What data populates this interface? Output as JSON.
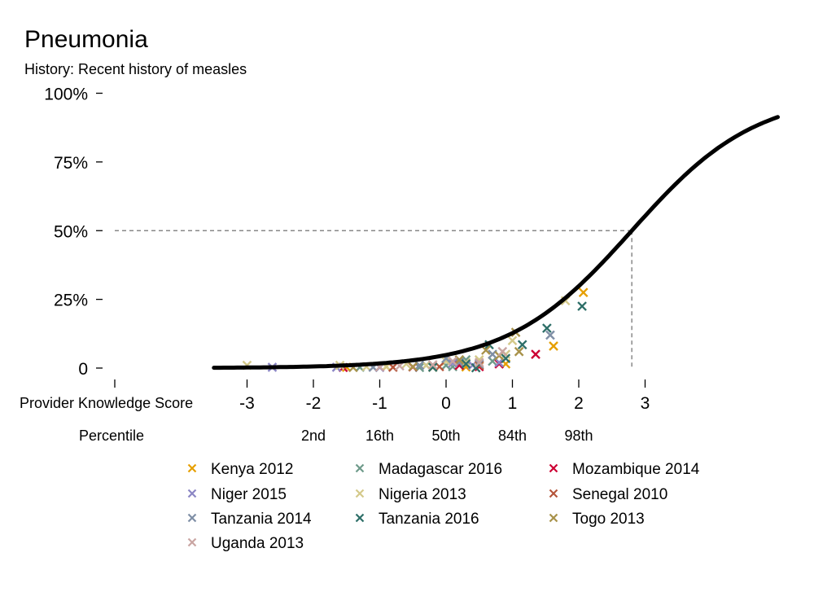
{
  "chart_data": {
    "type": "scatter",
    "title": "Pneumonia",
    "subtitle": "History: Recent history of measles",
    "xlabel": "Provider Knowledge Score",
    "x_ticks": [
      "-3",
      "-2",
      "-1",
      "0",
      "1",
      "2",
      "3"
    ],
    "xlim": [
      -3.5,
      5.0
    ],
    "ylim": [
      0,
      100
    ],
    "y_ticks": [
      "0",
      "25%",
      "50%",
      "75%",
      "100%"
    ],
    "percentile_label": "Percentile",
    "percentile_ticks": [
      {
        "x": -2,
        "label": "2nd"
      },
      {
        "x": -1,
        "label": "16th"
      },
      {
        "x": 0,
        "label": "50th"
      },
      {
        "x": 1,
        "label": "84th"
      },
      {
        "x": 2,
        "label": "98th"
      }
    ],
    "curve": {
      "type": "logistic",
      "x50": 2.8,
      "slope": 1.07,
      "color": "#000000"
    },
    "reference": {
      "x": 2.8,
      "y": 50
    },
    "grid": false,
    "legend_position": "bottom",
    "series": [
      {
        "name": "Kenya 2012",
        "color": "#E69F00",
        "points": [
          [
            2.07,
            27.5
          ],
          [
            1.62,
            8
          ],
          [
            0.9,
            1.5
          ],
          [
            0.5,
            1
          ],
          [
            -0.9,
            0.5
          ],
          [
            -0.2,
            0.3
          ],
          [
            0.3,
            0.4
          ],
          [
            -1.5,
            0.3
          ]
        ]
      },
      {
        "name": "Madagascar 2016",
        "color": "#6E9A8A",
        "points": [
          [
            0.3,
            3
          ],
          [
            0.0,
            1
          ],
          [
            -0.4,
            0.2
          ],
          [
            0.7,
            2.5
          ],
          [
            -1.3,
            0.3
          ],
          [
            0.1,
            0.5
          ]
        ]
      },
      {
        "name": "Mozambique 2014",
        "color": "#CC0033",
        "points": [
          [
            1.35,
            5
          ],
          [
            0.8,
            1.5
          ],
          [
            -1.55,
            0.2
          ],
          [
            -0.5,
            0.4
          ],
          [
            0.2,
            1
          ],
          [
            0.5,
            0.5
          ]
        ]
      },
      {
        "name": "Niger 2015",
        "color": "#8B86C4",
        "points": [
          [
            -2.62,
            0.3
          ],
          [
            -1.65,
            0.3
          ],
          [
            -1.0,
            0.2
          ],
          [
            -0.3,
            1
          ],
          [
            0.4,
            1
          ],
          [
            0.8,
            2
          ],
          [
            0.1,
            1.8
          ]
        ]
      },
      {
        "name": "Nigeria 2013",
        "color": "#D4C98A",
        "points": [
          [
            1.8,
            24.5
          ],
          [
            -3.0,
            1
          ],
          [
            -1.6,
            1
          ],
          [
            -0.6,
            1.5
          ],
          [
            0.0,
            2.5
          ],
          [
            0.5,
            3
          ],
          [
            1.0,
            10
          ],
          [
            -0.3,
            1
          ],
          [
            -0.9,
            0.6
          ],
          [
            0.3,
            2
          ],
          [
            0.9,
            5
          ],
          [
            -1.2,
            0.5
          ]
        ]
      },
      {
        "name": "Senegal 2010",
        "color": "#B5553A",
        "points": [
          [
            -0.1,
            0.5
          ],
          [
            0.5,
            1
          ],
          [
            -0.8,
            0.3
          ]
        ]
      },
      {
        "name": "Tanzania 2014",
        "color": "#7F8FA6",
        "points": [
          [
            1.57,
            12
          ],
          [
            0.7,
            5
          ],
          [
            0.2,
            2
          ],
          [
            -0.4,
            1
          ],
          [
            -1.1,
            0.3
          ],
          [
            0.0,
            3.5
          ],
          [
            0.5,
            1.5
          ]
        ]
      },
      {
        "name": "Tanzania 2016",
        "color": "#2E6F68",
        "points": [
          [
            2.05,
            22.5
          ],
          [
            1.52,
            14.5
          ],
          [
            1.15,
            8.5
          ],
          [
            0.65,
            8.5
          ],
          [
            0.9,
            3.5
          ],
          [
            0.3,
            1.5
          ],
          [
            -0.2,
            0.3
          ],
          [
            0.45,
            0.1
          ]
        ]
      },
      {
        "name": "Togo 2013",
        "color": "#A8924A",
        "points": [
          [
            1.05,
            13
          ],
          [
            0.6,
            6.5
          ],
          [
            1.1,
            6
          ],
          [
            0.2,
            3
          ],
          [
            -0.5,
            0.5
          ],
          [
            -1.4,
            0.2
          ],
          [
            0.8,
            4.5
          ]
        ]
      },
      {
        "name": "Uganda 2013",
        "color": "#C9A5A2",
        "points": [
          [
            0.5,
            2
          ],
          [
            -0.7,
            0.8
          ],
          [
            0.1,
            2.5
          ],
          [
            -0.2,
            1.2
          ],
          [
            0.85,
            6
          ],
          [
            -1.0,
            0.4
          ]
        ]
      }
    ]
  }
}
